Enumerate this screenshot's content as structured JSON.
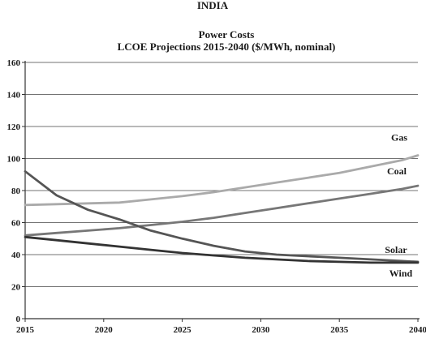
{
  "chart_data": {
    "type": "line",
    "title": "Power Costs",
    "subtitle": "LCOE Projections 2015-2040 ($/MWh, nominal)",
    "header": "INDIA",
    "xlim": [
      2015,
      2040
    ],
    "ylim": [
      0,
      160
    ],
    "x_ticks": [
      "2015",
      "2020",
      "2025",
      "2030",
      "2035",
      "2040"
    ],
    "y_ticks": [
      "0",
      "20",
      "40",
      "60",
      "80",
      "100",
      "120",
      "140",
      "160"
    ],
    "grid": true,
    "legend": "inline-right",
    "series": [
      {
        "name": "Gas",
        "color": "#aaaaaa",
        "x": [
          2015,
          2017,
          2019,
          2021,
          2023,
          2025,
          2027,
          2029,
          2031,
          2033,
          2035,
          2037,
          2039,
          2040
        ],
        "values": [
          71,
          71.5,
          72,
          72.5,
          74.5,
          76.5,
          79,
          82,
          85,
          88,
          91,
          95,
          99,
          102
        ]
      },
      {
        "name": "Coal",
        "color": "#777777",
        "x": [
          2015,
          2017,
          2019,
          2021,
          2023,
          2025,
          2027,
          2029,
          2031,
          2033,
          2035,
          2037,
          2039,
          2040
        ],
        "values": [
          52,
          53.5,
          55,
          56.5,
          58.5,
          60.5,
          63,
          66,
          69,
          72,
          75,
          78,
          81,
          83
        ]
      },
      {
        "name": "Solar",
        "color": "#555555",
        "x": [
          2015,
          2017,
          2019,
          2021,
          2023,
          2025,
          2027,
          2029,
          2031,
          2033,
          2035,
          2037,
          2039,
          2040
        ],
        "values": [
          92,
          77,
          68,
          62,
          55,
          50,
          45.5,
          42,
          40,
          39,
          38,
          37,
          36,
          35.5
        ]
      },
      {
        "name": "Wind",
        "color": "#333333",
        "x": [
          2015,
          2017,
          2019,
          2021,
          2023,
          2025,
          2027,
          2029,
          2031,
          2033,
          2035,
          2037,
          2039,
          2040
        ],
        "values": [
          51,
          49,
          47,
          45,
          43,
          41,
          39.5,
          38,
          37,
          36,
          35.5,
          35,
          35,
          35
        ]
      }
    ]
  }
}
